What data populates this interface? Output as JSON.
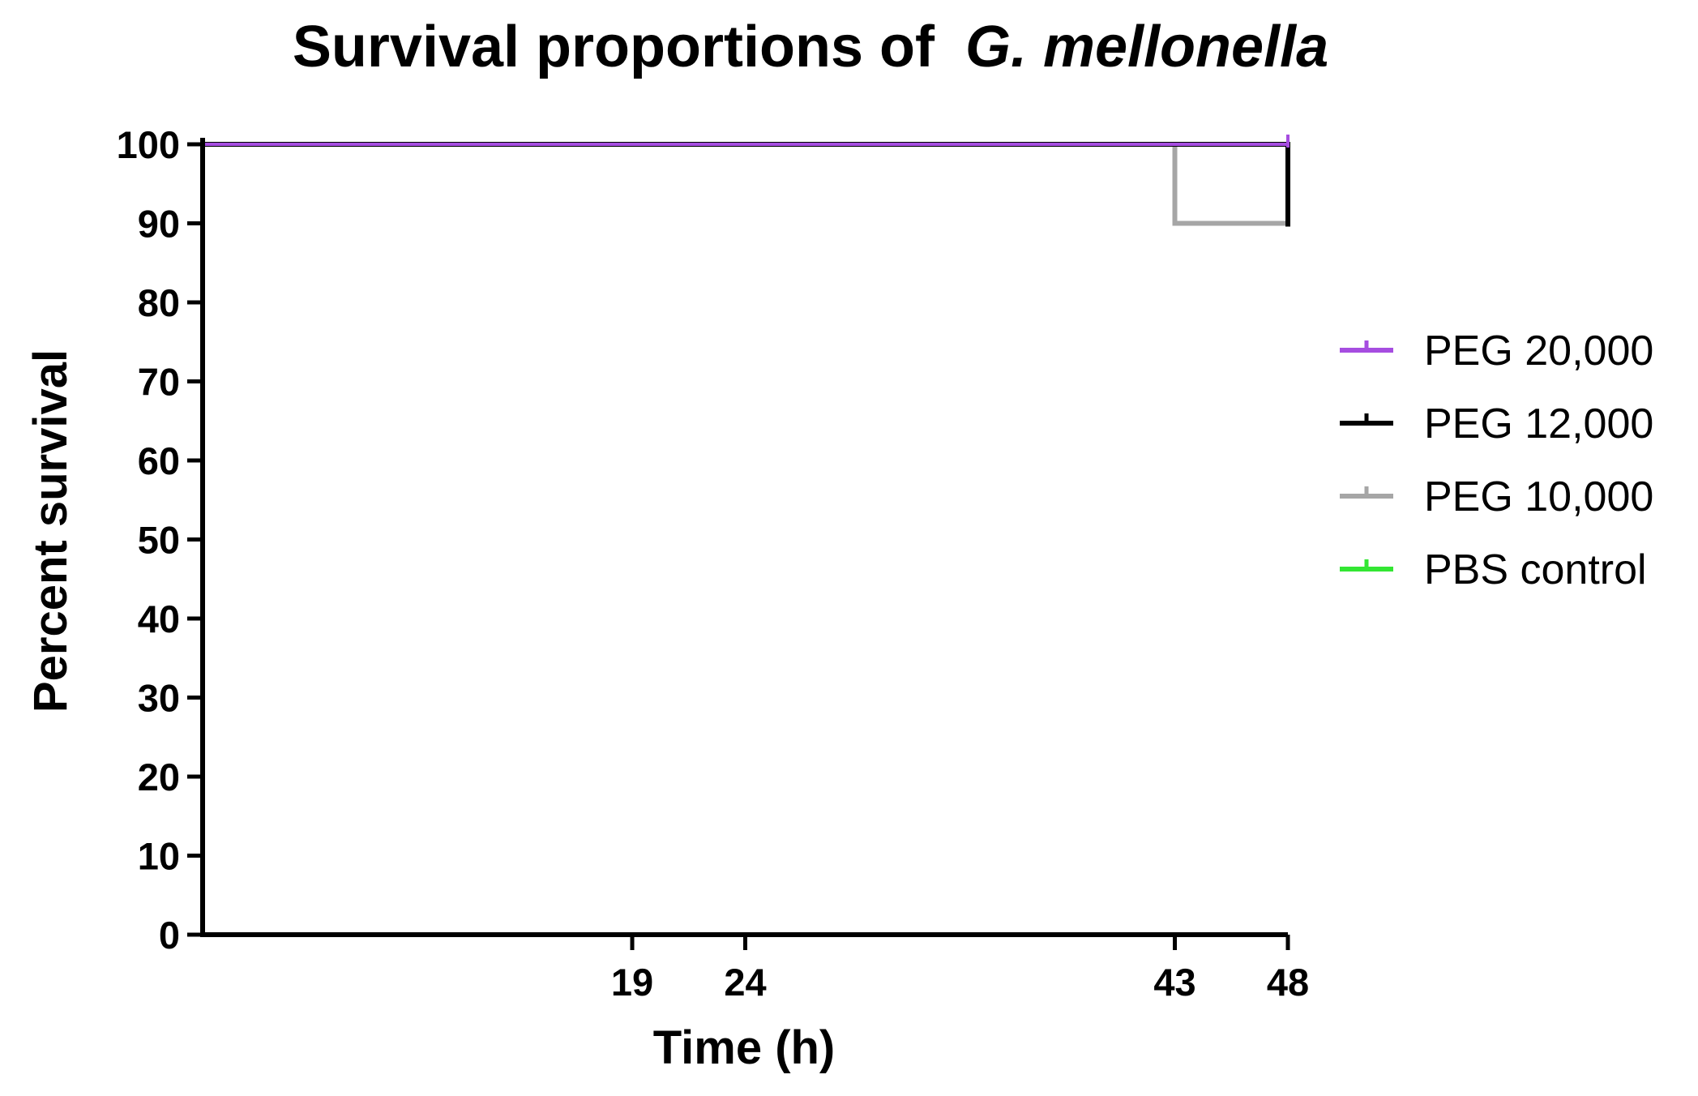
{
  "chart_data": {
    "type": "line",
    "style": "step (Kaplan-Meier survival curve)",
    "title": "Survival proportions of",
    "title_species": "G. mellonella",
    "xlabel": "Time (h)",
    "ylabel": "Percent survival",
    "xlim": [
      0,
      48
    ],
    "ylim": [
      0,
      100
    ],
    "xticks": [
      19,
      24,
      43,
      48
    ],
    "yticks": [
      0,
      10,
      20,
      30,
      40,
      50,
      60,
      70,
      80,
      90,
      100
    ],
    "legend_position": "right",
    "series": [
      {
        "name": "PEG 20,000",
        "color": "#A64DE0",
        "points": [
          [
            0,
            100
          ],
          [
            48,
            100
          ]
        ]
      },
      {
        "name": "PEG 12,000",
        "color": "#000000",
        "points": [
          [
            0,
            100
          ],
          [
            48,
            100
          ],
          [
            48,
            90
          ]
        ]
      },
      {
        "name": "PEG 10,000",
        "color": "#A6A6A6",
        "points": [
          [
            0,
            100
          ],
          [
            43,
            100
          ],
          [
            43,
            90
          ],
          [
            48,
            90
          ]
        ]
      },
      {
        "name": "PBS control",
        "color": "#33E633",
        "points": [
          [
            0,
            100
          ],
          [
            48,
            100
          ]
        ]
      }
    ]
  }
}
